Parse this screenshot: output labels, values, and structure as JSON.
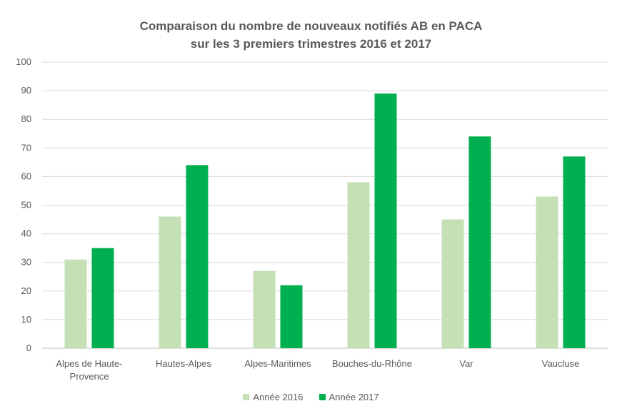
{
  "chart_data": {
    "type": "bar",
    "title": "Comparaison du nombre de nouveaux notifiés AB en PACA",
    "subtitle": "sur les 3 premiers trimestres 2016 et 2017",
    "categories": [
      [
        "Alpes de Haute-",
        "Provence"
      ],
      [
        "Hautes-Alpes"
      ],
      [
        "Alpes-Maritimes"
      ],
      [
        "Bouches-du-Rhône"
      ],
      [
        "Var"
      ],
      [
        "Vaucluse"
      ]
    ],
    "series": [
      {
        "name": "Année 2016",
        "color": "#c5e0b4",
        "values": [
          31,
          46,
          27,
          58,
          45,
          53
        ]
      },
      {
        "name": "Année 2017",
        "color": "#00b050",
        "values": [
          35,
          64,
          22,
          89,
          74,
          67
        ]
      }
    ],
    "ylim": [
      0,
      100
    ],
    "yticks": [
      0,
      10,
      20,
      30,
      40,
      50,
      60,
      70,
      80,
      90,
      100
    ],
    "grid": true,
    "legend_position": "bottom"
  }
}
